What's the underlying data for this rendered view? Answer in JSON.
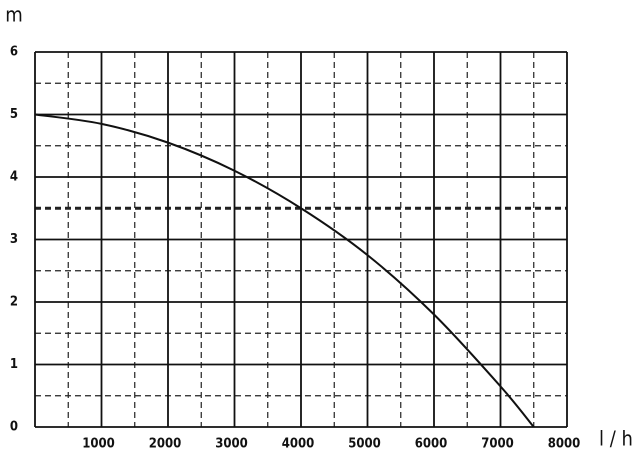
{
  "chart_data": {
    "type": "line",
    "x_label": "l / h",
    "y_label": "m",
    "x": [
      0,
      1000,
      2000,
      3000,
      4000,
      5000,
      6000,
      7000,
      7500
    ],
    "values": [
      5,
      4.85,
      4.55,
      4.1,
      3.5,
      2.75,
      1.8,
      0.65,
      0
    ],
    "color": "#111111",
    "xlim": [
      0,
      8000
    ],
    "ylim": [
      0,
      6
    ],
    "xticks": [
      1000,
      2000,
      3000,
      4000,
      5000,
      6000,
      7000,
      8000
    ],
    "yticks": [
      0,
      1,
      2,
      3,
      4,
      5,
      6
    ],
    "x_minor_ticks": [
      500,
      1500,
      2500,
      3500,
      4500,
      5500,
      6500,
      7500
    ],
    "y_minor_ticks": [
      0.5,
      1.5,
      2.5,
      3.5,
      4.5,
      5.5
    ],
    "highlight_y": 3.5,
    "grid": true
  }
}
